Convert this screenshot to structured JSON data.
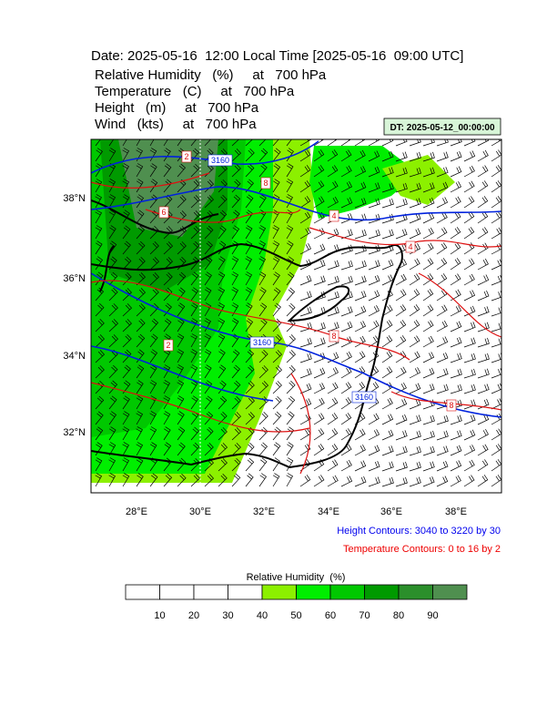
{
  "header": {
    "title": "Date: 2025-05-16  12:00 Local Time [2025-05-16  09:00 UTC]",
    "lines": [
      "Relative Humidity   (%)     at   700 hPa",
      "Temperature   (C)     at   700 hPa",
      "Height   (m)     at   700 hPa",
      "Wind   (kts)     at   700 hPa"
    ]
  },
  "dt_label": "DT: 2025-05-12_00:00:00",
  "map": {
    "lat_labels": [
      "38°N",
      "36°N",
      "34°N",
      "32°N"
    ],
    "lon_labels": [
      "28°E",
      "30°E",
      "32°E",
      "34°E",
      "36°E",
      "38°E"
    ],
    "height_contour_labels": [
      "3160",
      "3160",
      "3160"
    ],
    "temp_contour_labels": [
      "2",
      "8",
      "6",
      "4",
      "4",
      "8",
      "2",
      "8"
    ]
  },
  "notes": [
    "Height Contours: 3040 to 3220 by 30",
    "Temperature Contours: 0 to 16 by 2"
  ],
  "colorbar": {
    "title": "Relative Humidity  (%)",
    "labels": [
      "10",
      "20",
      "30",
      "40",
      "50",
      "60",
      "70",
      "80",
      "90"
    ],
    "colors": [
      "#ffffff",
      "#ffffff",
      "#ffffff",
      "#ffffff",
      "#8cf000",
      "#00ee00",
      "#00c800",
      "#009a00",
      "#2b8f2b",
      "#4f8f4f"
    ]
  }
}
